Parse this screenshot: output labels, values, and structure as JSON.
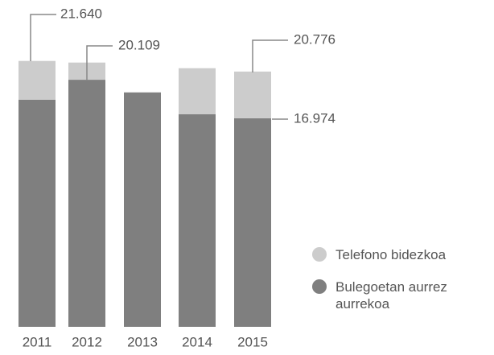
{
  "chart_data": {
    "type": "stacked_bar",
    "categories": [
      "2011",
      "2012",
      "2013",
      "2014",
      "2015"
    ],
    "series": [
      {
        "name": "Bulegoetan aurrez aurrekoa",
        "color": "#7f7f7f",
        "values": [
          18.49,
          20.109,
          19.08,
          17.31,
          16.974
        ]
      },
      {
        "name": "Telefono bidezkoa",
        "color": "#cccccc",
        "values": [
          3.15,
          1.4,
          0,
          3.74,
          3.802
        ]
      }
    ],
    "annotations": [
      "21.640",
      "20.109",
      "20.776",
      "16.974"
    ],
    "ylim": [
      0,
      26.6
    ]
  }
}
